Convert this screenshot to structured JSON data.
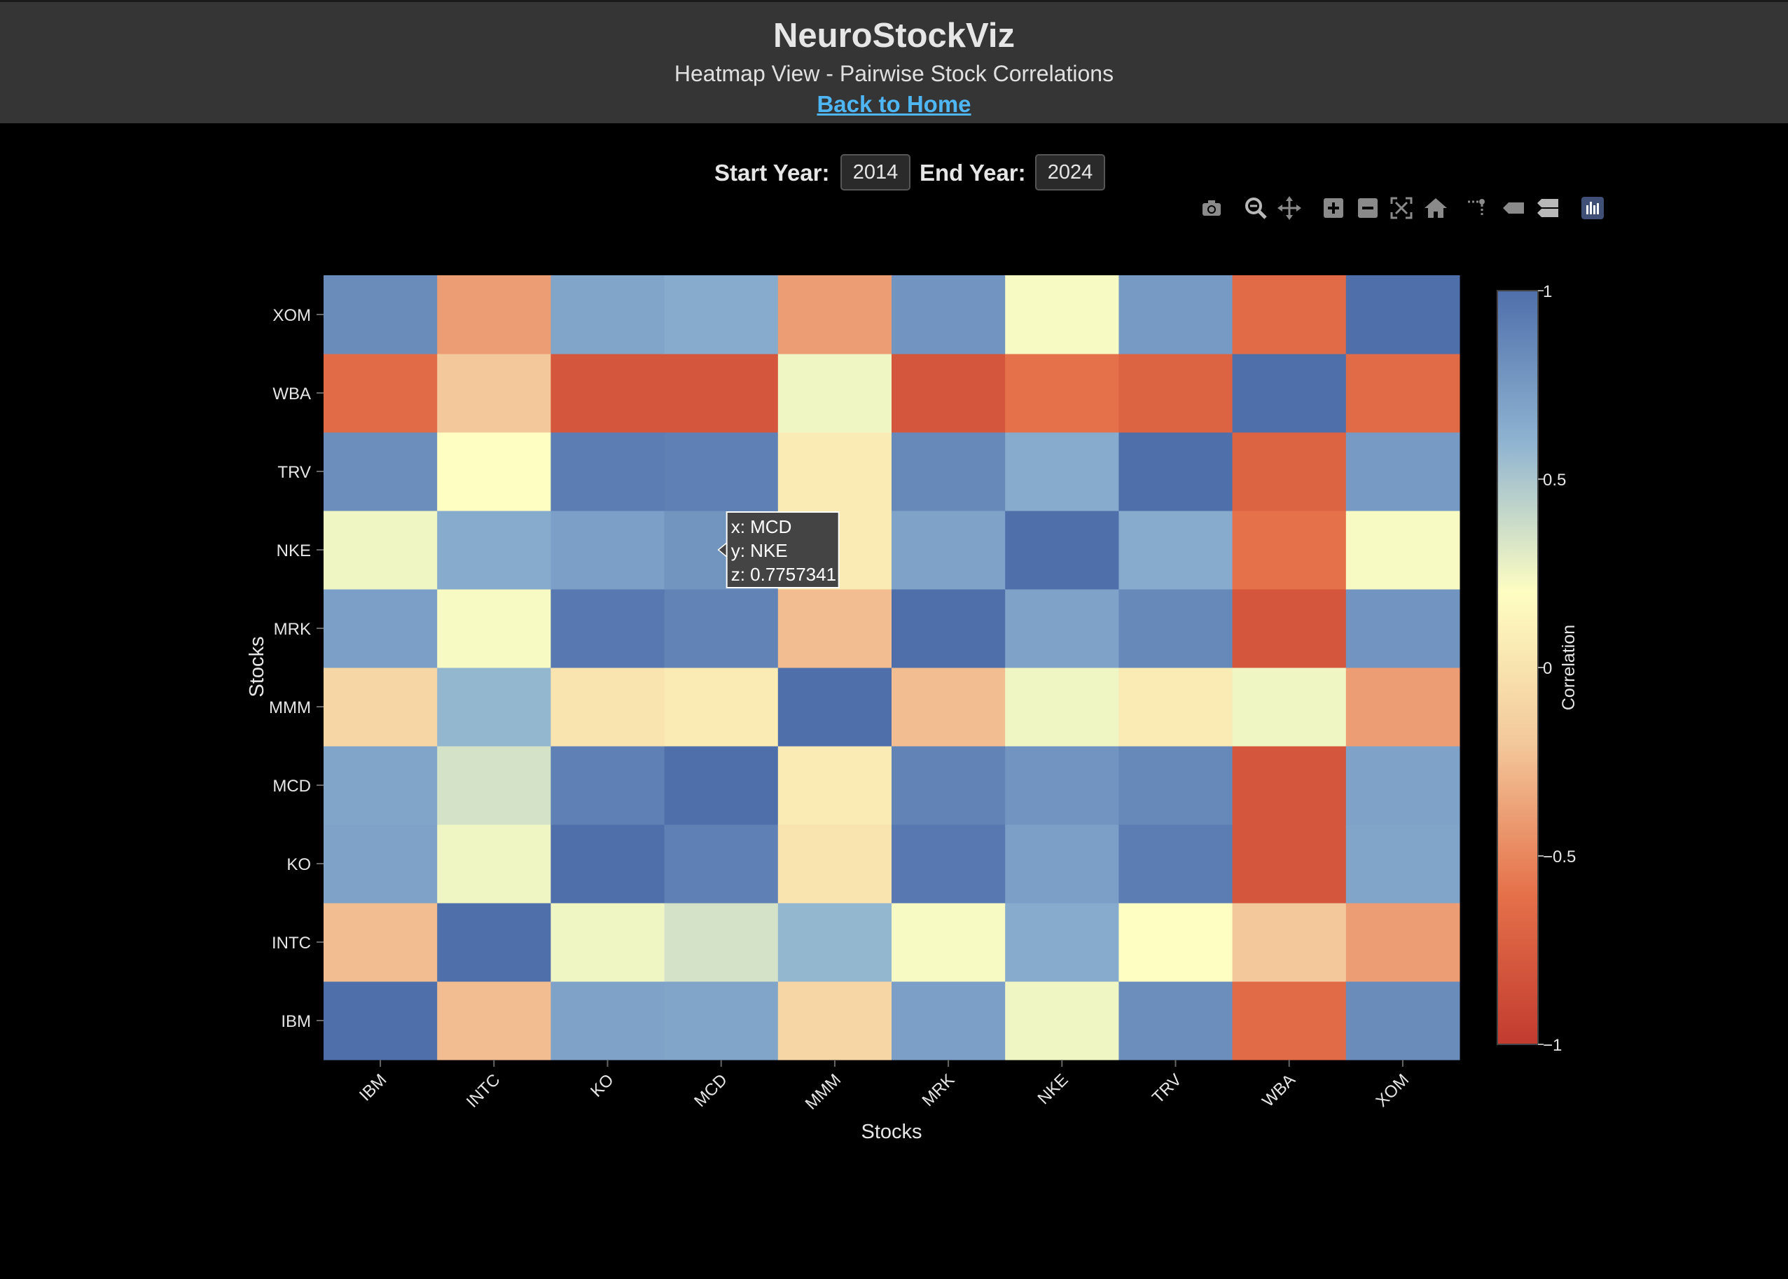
{
  "header": {
    "title": "NeuroStockViz",
    "subtitle": "Heatmap View - Pairwise Stock Correlations",
    "home_link": "Back to Home"
  },
  "controls": {
    "start_label": "Start Year:",
    "start_value": "2014",
    "end_label": "End Year:",
    "end_value": "2024"
  },
  "modebar": {
    "icons": [
      "camera-icon",
      "zoom-icon",
      "pan-icon",
      "zoom-in-icon",
      "zoom-out-icon",
      "autoscale-icon",
      "reset-axes-icon",
      "hover-closest-icon",
      "hover-compare-icon",
      "spike-lines-icon",
      "plotly-logo-icon"
    ]
  },
  "chart_data": {
    "type": "heatmap",
    "x": [
      "IBM",
      "INTC",
      "KO",
      "MCD",
      "MMM",
      "MRK",
      "NKE",
      "TRV",
      "WBA",
      "XOM"
    ],
    "y": [
      "IBM",
      "INTC",
      "KO",
      "MCD",
      "MMM",
      "MRK",
      "NKE",
      "TRV",
      "WBA",
      "XOM"
    ],
    "z": [
      [
        1.0,
        -0.25,
        0.7,
        0.68,
        -0.1,
        0.72,
        0.25,
        0.82,
        -0.65,
        0.83
      ],
      [
        -0.25,
        1.0,
        0.25,
        0.35,
        0.58,
        0.22,
        0.65,
        0.2,
        -0.2,
        -0.4
      ],
      [
        0.7,
        0.25,
        1.0,
        0.9,
        0.0,
        0.95,
        0.72,
        0.92,
        -0.8,
        0.68
      ],
      [
        0.68,
        0.35,
        0.9,
        1.0,
        0.05,
        0.88,
        0.78,
        0.85,
        -0.8,
        0.7
      ],
      [
        -0.1,
        0.58,
        0.0,
        0.05,
        1.0,
        -0.25,
        0.25,
        0.05,
        0.25,
        -0.4
      ],
      [
        0.72,
        0.22,
        0.95,
        0.88,
        -0.25,
        1.0,
        0.7,
        0.85,
        -0.8,
        0.78
      ],
      [
        0.25,
        0.65,
        0.72,
        0.7757341,
        0.05,
        0.7,
        1.0,
        0.65,
        -0.6,
        0.22
      ],
      [
        0.82,
        0.2,
        0.92,
        0.9,
        0.05,
        0.85,
        0.65,
        1.0,
        -0.7,
        0.75
      ],
      [
        -0.65,
        -0.2,
        -0.8,
        -0.8,
        0.25,
        -0.8,
        -0.6,
        -0.7,
        1.0,
        -0.65
      ],
      [
        0.83,
        -0.4,
        0.68,
        0.65,
        -0.4,
        0.78,
        0.22,
        0.75,
        -0.65,
        1.0
      ]
    ],
    "xlabel": "Stocks",
    "ylabel": "Stocks",
    "zmin": -1,
    "zmax": 1,
    "colorbar": {
      "title": "Correlation",
      "tick_labels": [
        "1",
        "0.5",
        "0",
        "−0.5",
        "−1"
      ],
      "tick_values": [
        1,
        0.5,
        0,
        -0.5,
        -1
      ]
    },
    "colorscale": [
      "#c23b2f",
      "#e5714a",
      "#f3c89b",
      "#fefec2",
      "#8eb3d1",
      "#4f6fab"
    ],
    "hover": {
      "x_line": "x: MCD",
      "y_line": "y: NKE",
      "z_line": "z: 0.7757341",
      "x_index": 3,
      "y_index": 6
    }
  }
}
